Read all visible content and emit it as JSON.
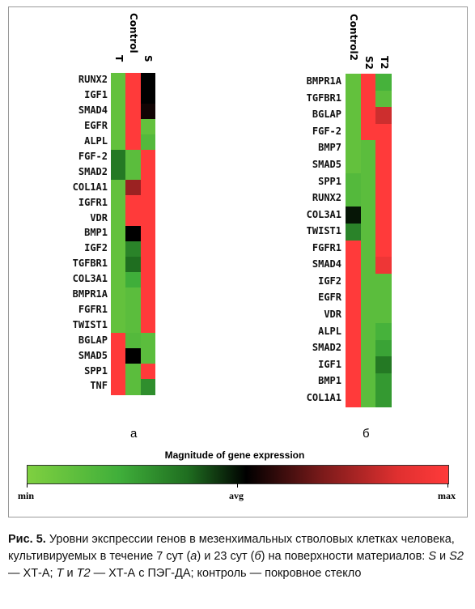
{
  "colors": {
    "min": "#7fd040",
    "green": "#3fae3a",
    "dark_green": "#1f6e20",
    "avg": "#000000",
    "dark_red": "#7a1a1a",
    "max": "#ff3a3a"
  },
  "chart_data": [
    {
      "type": "heatmap",
      "panel_label": "а",
      "columns": [
        "T",
        "Control",
        "S"
      ],
      "rows": [
        "RUNX2",
        "IGF1",
        "SMAD4",
        "EGFR",
        "ALPL",
        "FGF-2",
        "SMAD2",
        "COL1A1",
        "IGFR1",
        "VDR",
        "BMP1",
        "IGF2",
        "TGFBR1",
        "COL3A1",
        "BMPR1A",
        "FGFR1",
        "TWIST1",
        "BGLAP",
        "SMAD5",
        "SPP1",
        "TNF"
      ],
      "values": [
        [
          -0.8,
          1.0,
          0.0
        ],
        [
          -0.8,
          1.0,
          0.0
        ],
        [
          -0.8,
          1.0,
          0.05
        ],
        [
          -0.8,
          1.0,
          -0.8
        ],
        [
          -0.8,
          1.0,
          -0.7
        ],
        [
          -0.3,
          -0.75,
          0.95
        ],
        [
          -0.3,
          -0.75,
          0.95
        ],
        [
          -0.8,
          0.45,
          0.95
        ],
        [
          -0.8,
          0.85,
          0.95
        ],
        [
          -0.8,
          1.0,
          0.95
        ],
        [
          -0.8,
          0.0,
          0.95
        ],
        [
          -0.8,
          -0.35,
          0.95
        ],
        [
          -0.8,
          -0.25,
          0.95
        ],
        [
          -0.8,
          -0.55,
          0.95
        ],
        [
          -0.8,
          -0.75,
          0.95
        ],
        [
          -0.8,
          -0.75,
          0.95
        ],
        [
          -0.8,
          -0.75,
          0.95
        ],
        [
          1.0,
          -0.7,
          -0.75
        ],
        [
          1.0,
          0.0,
          -0.75
        ],
        [
          1.0,
          -0.75,
          0.95
        ],
        [
          1.0,
          -0.75,
          -0.4
        ]
      ]
    },
    {
      "type": "heatmap",
      "panel_label": "б",
      "columns": [
        "Control2",
        "S2",
        "T2"
      ],
      "rows": [
        "BMPR1A",
        "TGFBR1",
        "BGLAP",
        "FGF-2",
        "BMP7",
        "SMAD5",
        "SPP1",
        "RUNX2",
        "COL3A1",
        "TWIST1",
        "FGFR1",
        "SMAD4",
        "IGF2",
        "EGFR",
        "VDR",
        "ALPL",
        "SMAD2",
        "IGF1",
        "BMP1",
        "COL1A1"
      ],
      "values": [
        [
          -0.8,
          0.95,
          -0.6
        ],
        [
          -0.8,
          0.95,
          -0.75
        ],
        [
          -0.8,
          0.95,
          0.6
        ],
        [
          -0.8,
          0.95,
          0.75
        ],
        [
          -0.8,
          -0.75,
          0.95
        ],
        [
          -0.8,
          -0.75,
          0.95
        ],
        [
          -0.7,
          -0.75,
          0.95
        ],
        [
          -0.7,
          -0.75,
          0.95
        ],
        [
          -0.05,
          -0.75,
          0.95
        ],
        [
          -0.35,
          -0.75,
          0.95
        ],
        [
          0.95,
          -0.75,
          0.9
        ],
        [
          0.95,
          -0.75,
          0.7
        ],
        [
          0.95,
          -0.75,
          -0.75
        ],
        [
          0.95,
          -0.75,
          -0.75
        ],
        [
          0.95,
          -0.75,
          -0.75
        ],
        [
          0.95,
          -0.75,
          -0.6
        ],
        [
          0.95,
          -0.75,
          -0.5
        ],
        [
          0.95,
          -0.75,
          -0.3
        ],
        [
          0.95,
          -0.75,
          -0.45
        ],
        [
          0.95,
          -0.75,
          -0.45
        ]
      ]
    }
  ],
  "legend": {
    "title": "Magnitude of gene expression",
    "min_label": "min",
    "avg_label": "avg",
    "max_label": "max"
  },
  "caption": {
    "fig_label": "Рис. 5.",
    "text": " Уровни экспрессии генов в мезенхимальных стволовых клетках человека, культивируемых в течение 7 сут (",
    "part_a": "а",
    "text2": ") и 23 сут (",
    "part_b": "б",
    "text3": ") на поверхности материалов: ",
    "s": "S",
    "text4": " и ",
    "s2": "S2",
    "text5": " — ХТ-А; ",
    "t": "T",
    "text6": " и ",
    "t2": "T2",
    "text7": " — ХТ-А с ПЭГ-ДА; контроль — покровное стекло"
  }
}
